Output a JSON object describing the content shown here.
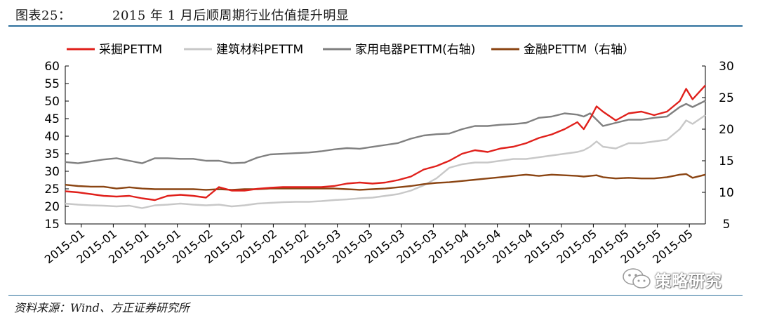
{
  "header": {
    "figure_label": "图表25：",
    "title": "2015 年 1 月后顺周期行业估值提升明显"
  },
  "footer": {
    "source": "资料来源：Wind、方正证券研究所"
  },
  "watermark": {
    "text": "策略研究",
    "icon": "wechat-icon"
  },
  "chart_data": {
    "type": "line",
    "title": "",
    "x_tick_labels": [
      "2015-01",
      "2015-01",
      "2015-01",
      "2015-01",
      "2015-02",
      "2015-02",
      "2015-02",
      "2015-02",
      "2015-03",
      "2015-03",
      "2015-03",
      "2015-03",
      "2015-04",
      "2015-04",
      "2015-04",
      "2015-05",
      "2015-05",
      "2015-05",
      "2015-05",
      "2015-05"
    ],
    "x_range": [
      0,
      100
    ],
    "y_left": {
      "range": [
        15,
        60
      ],
      "ticks": [
        15,
        20,
        25,
        30,
        35,
        40,
        45,
        50,
        55,
        60
      ]
    },
    "y_right": {
      "range": [
        5,
        30
      ],
      "ticks": [
        5,
        10,
        15,
        20,
        25,
        30
      ]
    },
    "legend_position": "top",
    "series": [
      {
        "name": "采掘PETTM",
        "axis": "left",
        "color": "#e0201b",
        "x": [
          0,
          2,
          4,
          6,
          8,
          10,
          12,
          14,
          16,
          18,
          20,
          22,
          24,
          26,
          28,
          30,
          32,
          34,
          36,
          38,
          40,
          42,
          44,
          46,
          48,
          50,
          52,
          54,
          56,
          58,
          60,
          62,
          64,
          66,
          68,
          70,
          72,
          74,
          76,
          78,
          80,
          81,
          82,
          83,
          84,
          86,
          88,
          90,
          92,
          94,
          96,
          97,
          98,
          100
        ],
        "values": [
          24.3,
          24.0,
          23.5,
          23.0,
          22.8,
          23.0,
          22.3,
          21.8,
          23.0,
          23.3,
          23.0,
          22.5,
          25.5,
          24.5,
          24.5,
          25.0,
          25.3,
          25.5,
          25.5,
          25.5,
          25.5,
          25.8,
          26.5,
          26.8,
          26.5,
          26.8,
          27.5,
          28.5,
          30.5,
          31.5,
          33.0,
          35.0,
          36.0,
          35.5,
          36.5,
          37.0,
          38.0,
          39.5,
          40.5,
          42.0,
          44.0,
          42.0,
          45.0,
          48.5,
          47.0,
          44.5,
          46.5,
          47.0,
          46.0,
          47.0,
          50.0,
          53.5,
          50.5,
          54.5
        ]
      },
      {
        "name": "建筑材料PETTM",
        "axis": "left",
        "color": "#c8c8c8",
        "x": [
          0,
          2,
          4,
          6,
          8,
          10,
          12,
          14,
          16,
          18,
          20,
          22,
          24,
          26,
          28,
          30,
          32,
          34,
          36,
          38,
          40,
          42,
          44,
          46,
          48,
          50,
          52,
          54,
          56,
          58,
          60,
          62,
          64,
          66,
          68,
          70,
          72,
          74,
          76,
          78,
          80,
          81,
          82,
          83,
          84,
          86,
          88,
          90,
          92,
          94,
          96,
          97,
          98,
          100
        ],
        "values": [
          20.8,
          20.5,
          20.3,
          20.2,
          20.0,
          20.2,
          19.5,
          20.3,
          20.5,
          20.8,
          20.5,
          20.3,
          20.5,
          20.0,
          20.3,
          20.8,
          21.0,
          21.2,
          21.3,
          21.3,
          21.5,
          21.8,
          22.0,
          22.3,
          22.5,
          23.0,
          23.5,
          24.5,
          26.0,
          28.0,
          31.0,
          32.0,
          32.5,
          32.5,
          33.0,
          33.5,
          33.5,
          34.0,
          34.5,
          35.0,
          35.5,
          36.0,
          37.0,
          38.5,
          37.0,
          36.5,
          38.0,
          38.0,
          38.5,
          39.0,
          42.0,
          44.5,
          43.5,
          46.0
        ]
      },
      {
        "name": "家用电器PETTM(右轴)",
        "axis": "right",
        "color": "#808080",
        "x": [
          0,
          2,
          4,
          6,
          8,
          10,
          12,
          14,
          16,
          18,
          20,
          22,
          24,
          26,
          28,
          30,
          32,
          34,
          36,
          38,
          40,
          42,
          44,
          46,
          48,
          50,
          52,
          54,
          56,
          58,
          60,
          62,
          64,
          66,
          68,
          70,
          72,
          74,
          76,
          78,
          80,
          81,
          82,
          83,
          84,
          86,
          88,
          90,
          92,
          94,
          96,
          97,
          98,
          100
        ],
        "values": [
          14.8,
          14.6,
          14.9,
          15.2,
          15.4,
          15.0,
          14.6,
          15.4,
          15.4,
          15.3,
          15.3,
          15.0,
          15.0,
          14.6,
          14.7,
          15.5,
          16.0,
          16.1,
          16.2,
          16.3,
          16.5,
          16.8,
          17.0,
          16.9,
          17.2,
          17.5,
          17.8,
          18.5,
          19.0,
          19.2,
          19.3,
          20.0,
          20.5,
          20.5,
          20.7,
          20.8,
          21.0,
          21.8,
          22.0,
          22.5,
          22.3,
          22.0,
          22.5,
          21.5,
          20.5,
          21.0,
          21.5,
          21.5,
          21.8,
          22.0,
          23.5,
          24.0,
          23.5,
          24.5
        ]
      },
      {
        "name": "金融PETTM（右轴）",
        "axis": "right",
        "color": "#8b4513",
        "x": [
          0,
          2,
          4,
          6,
          8,
          10,
          12,
          14,
          16,
          18,
          20,
          22,
          24,
          26,
          28,
          30,
          32,
          34,
          36,
          38,
          40,
          42,
          44,
          46,
          48,
          50,
          52,
          54,
          56,
          58,
          60,
          62,
          64,
          66,
          68,
          70,
          72,
          74,
          76,
          78,
          80,
          81,
          82,
          83,
          84,
          86,
          88,
          90,
          92,
          94,
          96,
          97,
          98,
          100
        ],
        "values": [
          11.2,
          11.0,
          10.9,
          10.9,
          10.6,
          10.8,
          10.6,
          10.5,
          10.5,
          10.5,
          10.5,
          10.4,
          10.5,
          10.4,
          10.5,
          10.5,
          10.6,
          10.6,
          10.6,
          10.6,
          10.6,
          10.6,
          10.5,
          10.4,
          10.5,
          10.6,
          10.8,
          11.0,
          11.3,
          11.5,
          11.6,
          11.8,
          12.0,
          12.2,
          12.4,
          12.6,
          12.8,
          12.6,
          12.8,
          12.7,
          12.6,
          12.5,
          12.6,
          12.7,
          12.4,
          12.2,
          12.3,
          12.2,
          12.2,
          12.4,
          12.8,
          12.9,
          12.3,
          12.8
        ]
      }
    ]
  }
}
